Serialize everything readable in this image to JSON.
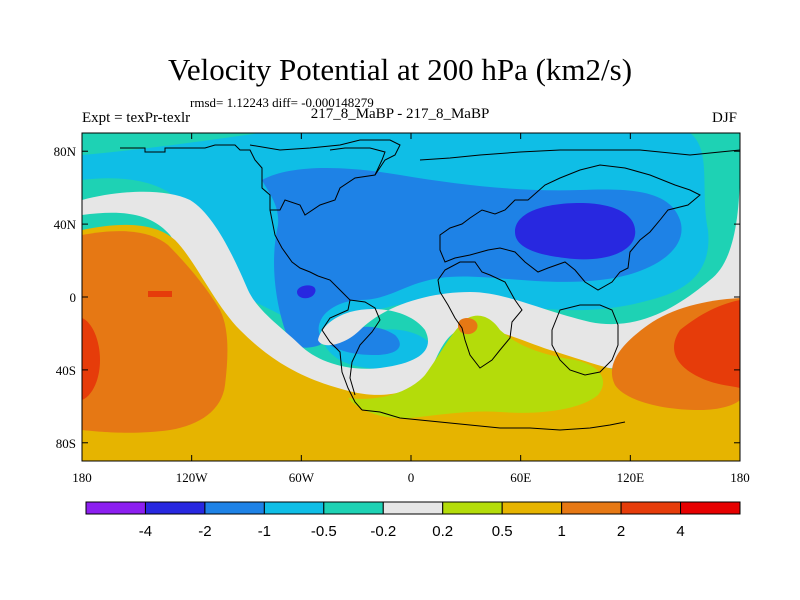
{
  "chart_data": {
    "type": "heatmap",
    "title": "Velocity Potential at 200 hPa (km2/s)",
    "stats": "rmsd= 1.12243 diff= -0.000148279",
    "subtitle": "217_8_MaBP - 217_8_MaBP",
    "left_label": "Expt = texPr-texlr",
    "right_label": "DJF",
    "x_range": [
      -180,
      180
    ],
    "y_range": [
      -90,
      90
    ],
    "x_ticks": [
      {
        "value": -180,
        "label": "180"
      },
      {
        "value": -120,
        "label": "120W"
      },
      {
        "value": -60,
        "label": "60W"
      },
      {
        "value": 0,
        "label": "0"
      },
      {
        "value": 60,
        "label": "60E"
      },
      {
        "value": 120,
        "label": "120E"
      },
      {
        "value": 180,
        "label": "180"
      }
    ],
    "y_ticks": [
      {
        "value": 80,
        "label": "80N"
      },
      {
        "value": 40,
        "label": "40N"
      },
      {
        "value": 0,
        "label": "0"
      },
      {
        "value": -40,
        "label": "40S"
      },
      {
        "value": -80,
        "label": "80S"
      }
    ],
    "colorbar": {
      "levels": [
        "-4",
        "-2",
        "-1",
        "-0.5",
        "-0.2",
        "0.2",
        "0.5",
        "1",
        "2",
        "4"
      ],
      "colors": [
        "#8c1ff0",
        "#2828e0",
        "#1e82e6",
        "#0fbee6",
        "#1ed2b4",
        "#e6e6e6",
        "#b4dc0a",
        "#e6b400",
        "#e67814",
        "#e63c0a",
        "#e60000"
      ]
    },
    "colors": {
      "cyan": "#0fbee6",
      "blue": "#1e82e6",
      "deep_blue": "#2828e0",
      "teal": "#1ed2b4",
      "white": "#e6e6e6",
      "yellow_green": "#b4dc0a",
      "gold": "#e6b400",
      "orange": "#e67814",
      "red_orange": "#e63c0a"
    },
    "field": [
      {
        "level_index": 4,
        "shape": "background-north-teal"
      },
      {
        "level_index": 3,
        "shape": "northern-cyan-band"
      },
      {
        "level_index": 2,
        "shape": "americas-eurasia-blue-belt"
      },
      {
        "level_index": 1,
        "shape": "central-asia-minimum"
      },
      {
        "level_index": 1,
        "shape": "south-america-minimum"
      },
      {
        "level_index": 5,
        "shape": "zero-contour-band"
      },
      {
        "level_index": 7,
        "shape": "southern-gold-region"
      },
      {
        "level_index": 6,
        "shape": "south-atlantic-yellow-green"
      },
      {
        "level_index": 8,
        "shape": "eastern-pacific-orange"
      },
      {
        "level_index": 8,
        "shape": "western-pacific-orange"
      },
      {
        "level_index": 9,
        "shape": "eastern-pacific-max"
      },
      {
        "level_index": 9,
        "shape": "western-pacific-max"
      },
      {
        "level_index": 8,
        "shape": "africa-orange-spot"
      }
    ]
  }
}
